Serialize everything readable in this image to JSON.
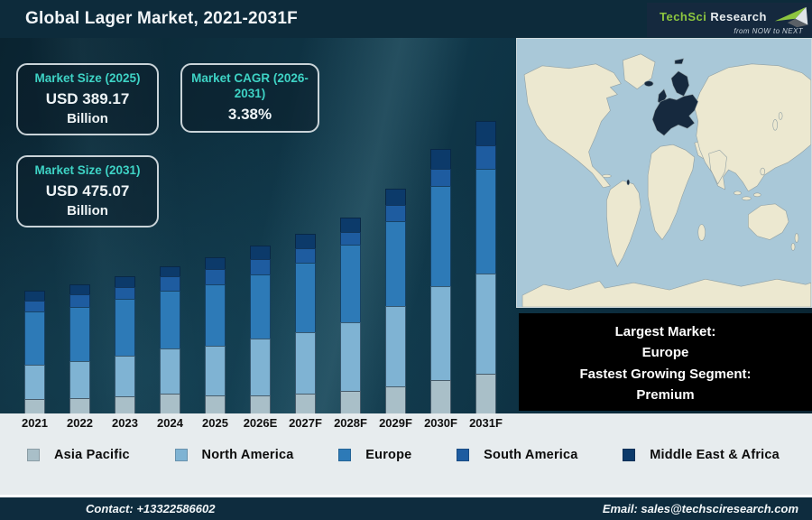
{
  "header": {
    "title": "Global Lager Market, 2021-2031F",
    "logo": {
      "name_primary": "TechSci",
      "name_secondary": "Research",
      "tagline": "from NOW to NEXT"
    }
  },
  "stat_boxes": [
    {
      "label": "Market Size (2025)",
      "value": "USD 389.17",
      "unit": "Billion"
    },
    {
      "label": "Market CAGR (2026-2031)",
      "value": "3.38%",
      "unit": ""
    },
    {
      "label": "Market Size (2031)",
      "value": "USD 475.07",
      "unit": "Billion"
    }
  ],
  "chart_data": {
    "type": "bar",
    "stacked": true,
    "title": "Global Lager Market, 2021-2031F",
    "categories": [
      "2021",
      "2022",
      "2023",
      "2024",
      "2025",
      "2026E",
      "2027F",
      "2028F",
      "2029F",
      "2030F",
      "2031F"
    ],
    "series": [
      {
        "name": "Asia Pacific",
        "color": "#a9bfc8",
        "values": [
          16,
          17,
          19,
          22,
          20,
          20,
          22,
          25,
          30,
          37,
          44
        ]
      },
      {
        "name": "North America",
        "color": "#7fb3d3",
        "values": [
          38,
          41,
          45,
          50,
          55,
          63,
          68,
          76,
          89,
          104,
          111
        ]
      },
      {
        "name": "Europe",
        "color": "#2d7ab7",
        "values": [
          59,
          60,
          63,
          64,
          68,
          71,
          77,
          86,
          94,
          111,
          116
        ]
      },
      {
        "name": "South America",
        "color": "#1e5ca0",
        "values": [
          12,
          14,
          13,
          16,
          17,
          17,
          16,
          14,
          18,
          19,
          26
        ]
      },
      {
        "name": "Middle East & Africa",
        "color": "#0c3a6a",
        "values": [
          11,
          11,
          12,
          11,
          13,
          15,
          16,
          16,
          18,
          22,
          27
        ]
      }
    ],
    "value_units": "relative bar height (no value axis shown in figure)",
    "legend_position": "bottom",
    "grid": false
  },
  "map": {
    "highlighted_region": "Europe",
    "ocean_color": "#a9c8d8",
    "land_color": "#ece8d0",
    "highlight_color": "#16293e"
  },
  "callout": {
    "lines": [
      "Largest Market:",
      "Europe",
      "Fastest Growing Segment:",
      "Premium"
    ]
  },
  "footer": {
    "contact": "Contact: +13322586602",
    "email": "Email: sales@techsciresearch.com"
  }
}
